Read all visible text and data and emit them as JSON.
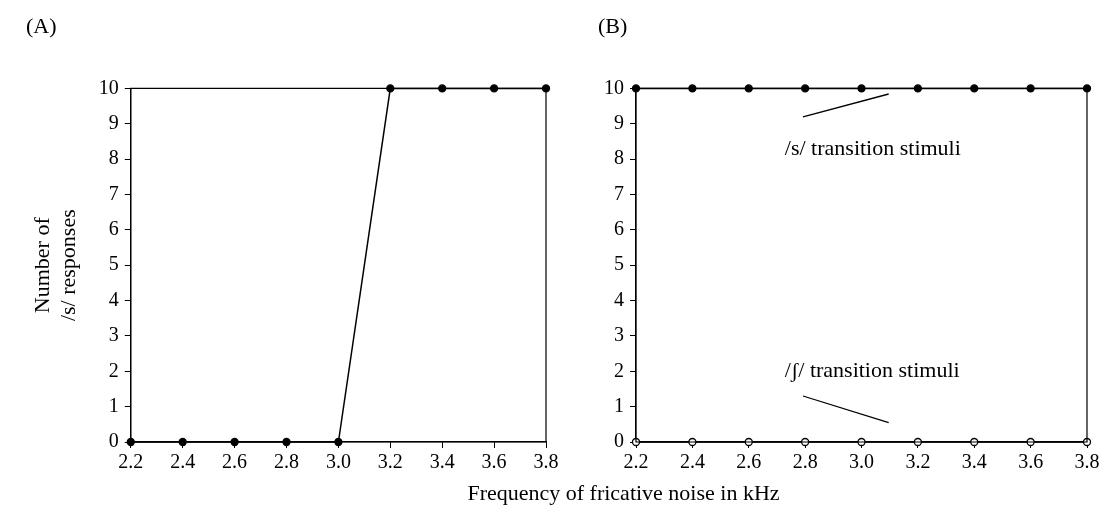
{
  "chart_data": [
    {
      "type": "line",
      "title": "(A)",
      "xlabel": "Frequency of fricative noise in kHz",
      "ylabel": "Number of\n/s/ responses",
      "x": [
        2.2,
        2.4,
        2.6,
        2.8,
        3.0,
        3.2,
        3.4,
        3.6,
        3.8
      ],
      "series": [
        {
          "color": "#000000",
          "values": [
            0,
            0,
            0,
            0,
            0,
            10,
            10,
            10,
            10
          ]
        }
      ],
      "xlim": [
        2.2,
        3.8
      ],
      "xticks": [
        {
          "value": 2.2,
          "label": "2.2"
        },
        {
          "value": 2.4,
          "label": "2.4"
        },
        {
          "value": 2.6,
          "label": "2.6"
        },
        {
          "value": 2.8,
          "label": "2.8"
        },
        {
          "value": 3,
          "label": "3.0"
        },
        {
          "value": 3.2,
          "label": "3.2"
        },
        {
          "value": 3.4,
          "label": "3.4"
        },
        {
          "value": 3.6,
          "label": "3.6"
        },
        {
          "value": 3.8,
          "label": "3.8"
        }
      ],
      "ylim": [
        0,
        10
      ],
      "yticks": [
        0,
        1,
        2,
        3,
        4,
        5,
        6,
        7,
        8,
        9,
        10
      ],
      "grid": false,
      "legend": false,
      "marker": "circle",
      "line_style": "solid"
    },
    {
      "type": "line",
      "title": "(B)",
      "x": [
        2.2,
        2.4,
        2.6,
        2.8,
        3.0,
        3.2,
        3.4,
        3.6,
        3.8
      ],
      "series": [
        {
          "name": "/s/ transition stimuli",
          "color": "#000000",
          "values": [
            10,
            10,
            10,
            10,
            10,
            10,
            10,
            10,
            10
          ]
        },
        {
          "name": "/ʃ/ transition stimuli",
          "color": "#000000",
          "values": [
            0,
            0,
            0,
            0,
            0,
            0,
            0,
            0,
            0
          ]
        }
      ],
      "xlim": [
        2.2,
        3.8
      ],
      "xticks": [
        {
          "value": 2.2,
          "label": "2.2"
        },
        {
          "value": 2.4,
          "label": "2.4"
        },
        {
          "value": 2.6,
          "label": "2.6"
        },
        {
          "value": 2.8,
          "label": "2.8"
        },
        {
          "value": 3,
          "label": "3.0"
        },
        {
          "value": 3.2,
          "label": "3.2"
        },
        {
          "value": 3.4,
          "label": "3.4"
        },
        {
          "value": 3.6,
          "label": "3.6"
        },
        {
          "value": 3.8,
          "label": "3.8"
        }
      ],
      "ylim": [
        0,
        10
      ],
      "yticks": [
        0,
        1,
        2,
        3,
        4,
        5,
        6,
        7,
        8,
        9,
        10
      ],
      "grid": false,
      "marker": "circle",
      "line_style": "solid"
    }
  ]
}
